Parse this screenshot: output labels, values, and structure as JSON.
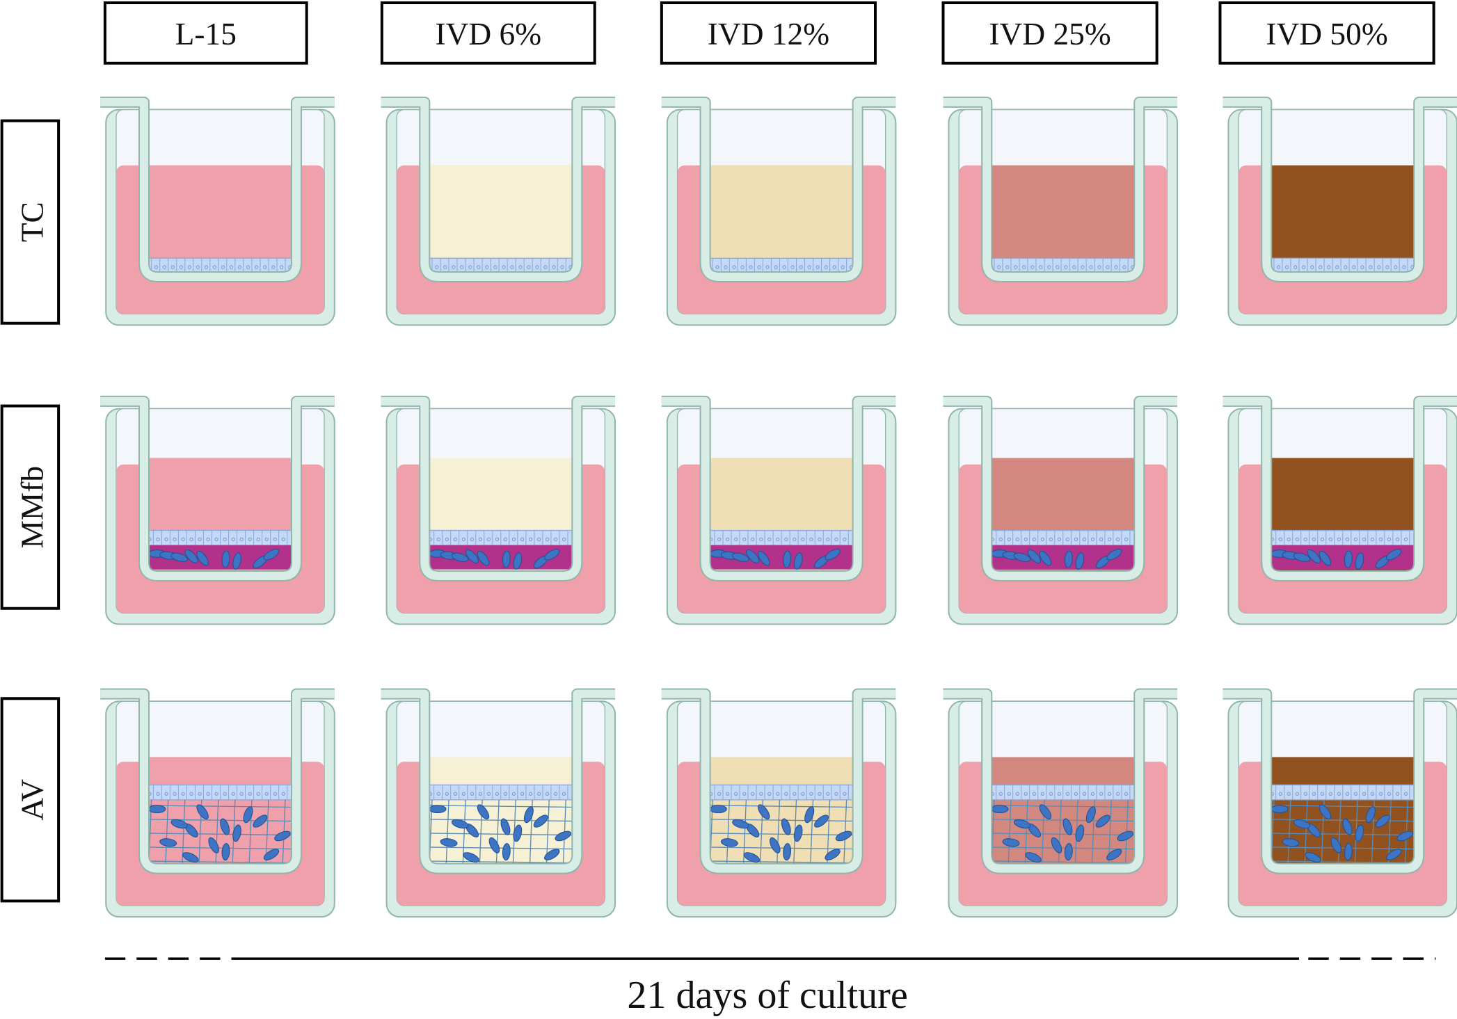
{
  "columns": [
    "L-15",
    "IVD 6%",
    "IVD 12%",
    "IVD 25%",
    "IVD 50%"
  ],
  "rows": [
    "TC",
    "MMfb",
    "AV"
  ],
  "footer": "21 days of culture"
}
